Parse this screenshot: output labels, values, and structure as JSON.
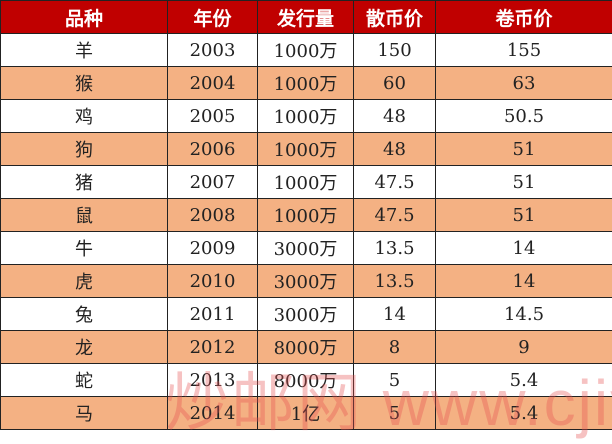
{
  "colors": {
    "header_bg": "#c00000",
    "alt_row_bg": "#f4b183",
    "row_bg": "#ffffff"
  },
  "table": {
    "headers": [
      "品种",
      "年份",
      "发行量",
      "散币价",
      "卷币价"
    ],
    "rows": [
      [
        "羊",
        "2003",
        "1000万",
        "150",
        "155"
      ],
      [
        "猴",
        "2004",
        "1000万",
        "60",
        "63"
      ],
      [
        "鸡",
        "2005",
        "1000万",
        "48",
        "50.5"
      ],
      [
        "狗",
        "2006",
        "1000万",
        "48",
        "51"
      ],
      [
        "猪",
        "2007",
        "1000万",
        "47.5",
        "51"
      ],
      [
        "鼠",
        "2008",
        "1000万",
        "47.5",
        "51"
      ],
      [
        "牛",
        "2009",
        "3000万",
        "13.5",
        "14"
      ],
      [
        "虎",
        "2010",
        "3000万",
        "13.5",
        "14"
      ],
      [
        "兔",
        "2011",
        "3000万",
        "14",
        "14.5"
      ],
      [
        "龙",
        "2012",
        "8000万",
        "8",
        "9"
      ],
      [
        "蛇",
        "2013",
        "8000万",
        "5",
        "5.4"
      ],
      [
        "马",
        "2014",
        "1亿",
        "5",
        "5.4"
      ]
    ]
  },
  "watermark": "炒邮网 www.cjiyou.net"
}
